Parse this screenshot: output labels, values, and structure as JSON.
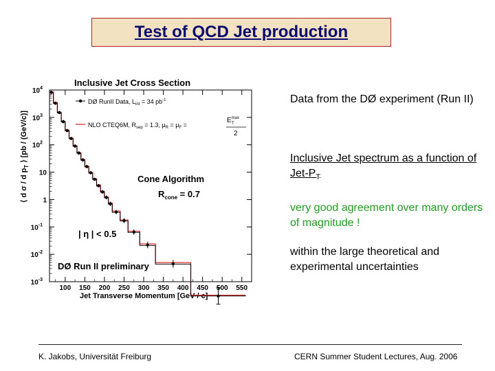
{
  "slide": {
    "title": "Test of QCD Jet production",
    "bullets": [
      {
        "text": "Data from the DØ experiment (Run II)",
        "color": "#000000",
        "underline": false
      },
      {
        "text": "Inclusive Jet spectrum as a function of Jet-P",
        "sub": "T",
        "color": "#000000",
        "underline": true
      },
      {
        "text": "very good agreement over many orders of magnitude !",
        "color": "#1e9a1e",
        "underline": false
      },
      {
        "text": "within the large theoretical and experimental uncertainties",
        "color": "#000000",
        "underline": false
      }
    ],
    "footer_left": "K. Jakobs, Universität Freiburg",
    "footer_right": "CERN Summer Student Lectures, Aug. 2006"
  },
  "chart_data": {
    "type": "scatter",
    "title": "Inclusive Jet Cross Section",
    "xlabel": "Jet Transverse Momentum [GeV / c]",
    "ylabel_parts": [
      "⟨ d σ / d p",
      "T",
      " ⟩ [pb / (GeV/c)]"
    ],
    "xlim": [
      60,
      575
    ],
    "ylim_log10": [
      -3,
      4
    ],
    "x_ticks": [
      100,
      150,
      200,
      250,
      300,
      350,
      400,
      450,
      500,
      550
    ],
    "y_ticks": [
      {
        "exp": 4,
        "label": "10",
        "sup": "4"
      },
      {
        "exp": 3,
        "label": "10",
        "sup": "3"
      },
      {
        "exp": 2,
        "label": "10",
        "sup": "2"
      },
      {
        "exp": 1,
        "label": "10",
        "sup": ""
      },
      {
        "exp": 0,
        "label": "1",
        "sup": ""
      },
      {
        "exp": -1,
        "label": "10",
        "sup": "-1"
      },
      {
        "exp": -2,
        "label": "10",
        "sup": "-2"
      },
      {
        "exp": -3,
        "label": "10",
        "sup": "-3"
      }
    ],
    "legend": [
      {
        "label": "DØ RunII Data, L",
        "sub": "int",
        "tail": " = 34 pb",
        "sup": "-1",
        "style": "data"
      },
      {
        "label": "NLO CTEQ6M, R",
        "sub": "sep",
        "tail": " = 1.3, μ",
        "tail2": " = μ",
        "tail3": " =",
        "style": "theory"
      }
    ],
    "legend_frac": {
      "num": "E",
      "num_sup": "max",
      "num_sub": "T",
      "den": "2"
    },
    "annotations": {
      "cone": "Cone Algorithm",
      "rcone_pre": "R",
      "rcone_sub": "cone",
      "rcone_post": " = 0.7",
      "eta_cut": "| η | < 0.5",
      "prelim": "DØ Run II preliminary"
    },
    "series": [
      {
        "name": "DØ RunII Data, L int = 34 pb-1",
        "color": "#000000",
        "points": [
          {
            "x": 65,
            "y": 8200,
            "err": 0.06
          },
          {
            "x": 75,
            "y": 3300,
            "err": 0.06
          },
          {
            "x": 85,
            "y": 1500,
            "err": 0.06
          },
          {
            "x": 95,
            "y": 700,
            "err": 0.06
          },
          {
            "x": 105,
            "y": 330,
            "err": 0.06
          },
          {
            "x": 115,
            "y": 170,
            "err": 0.06
          },
          {
            "x": 125,
            "y": 90,
            "err": 0.06
          },
          {
            "x": 135,
            "y": 50,
            "err": 0.06
          },
          {
            "x": 145,
            "y": 28,
            "err": 0.06
          },
          {
            "x": 155,
            "y": 16,
            "err": 0.06
          },
          {
            "x": 165,
            "y": 9.5,
            "err": 0.06
          },
          {
            "x": 175,
            "y": 5.5,
            "err": 0.06
          },
          {
            "x": 185,
            "y": 3.2,
            "err": 0.06
          },
          {
            "x": 195,
            "y": 1.9,
            "err": 0.07
          },
          {
            "x": 205,
            "y": 1.2,
            "err": 0.07
          },
          {
            "x": 215,
            "y": 0.7,
            "err": 0.08
          },
          {
            "x": 230,
            "y": 0.35,
            "err": 0.08
          },
          {
            "x": 250,
            "y": 0.17,
            "err": 0.09
          },
          {
            "x": 275,
            "y": 0.065,
            "err": 0.1
          },
          {
            "x": 310,
            "y": 0.022,
            "err": 0.12
          },
          {
            "x": 375,
            "y": 0.0045,
            "err": 0.14
          },
          {
            "x": 490,
            "y": 0.0003,
            "err": 0.3
          }
        ]
      },
      {
        "name": "NLO CTEQ6M",
        "color": "#e03030",
        "bins": [
          {
            "x0": 60,
            "x1": 70,
            "y": 8500
          },
          {
            "x0": 70,
            "x1": 80,
            "y": 3500
          },
          {
            "x0": 80,
            "x1": 90,
            "y": 1550
          },
          {
            "x0": 90,
            "x1": 100,
            "y": 720
          },
          {
            "x0": 100,
            "x1": 110,
            "y": 345
          },
          {
            "x0": 110,
            "x1": 120,
            "y": 175
          },
          {
            "x0": 120,
            "x1": 130,
            "y": 93
          },
          {
            "x0": 130,
            "x1": 140,
            "y": 51
          },
          {
            "x0": 140,
            "x1": 150,
            "y": 29
          },
          {
            "x0": 150,
            "x1": 160,
            "y": 16.5
          },
          {
            "x0": 160,
            "x1": 170,
            "y": 9.8
          },
          {
            "x0": 170,
            "x1": 180,
            "y": 5.8
          },
          {
            "x0": 180,
            "x1": 190,
            "y": 3.4
          },
          {
            "x0": 190,
            "x1": 200,
            "y": 2.0
          },
          {
            "x0": 200,
            "x1": 210,
            "y": 1.25
          },
          {
            "x0": 210,
            "x1": 220,
            "y": 0.75
          },
          {
            "x0": 220,
            "x1": 240,
            "y": 0.38
          },
          {
            "x0": 240,
            "x1": 260,
            "y": 0.18
          },
          {
            "x0": 260,
            "x1": 290,
            "y": 0.07
          },
          {
            "x0": 290,
            "x1": 330,
            "y": 0.024
          },
          {
            "x0": 330,
            "x1": 420,
            "y": 0.005
          },
          {
            "x0": 420,
            "x1": 560,
            "y": 0.00032
          }
        ]
      }
    ],
    "step_black": [
      {
        "x0": 60,
        "x1": 70,
        "y": 8000
      },
      {
        "x0": 70,
        "x1": 80,
        "y": 3200
      },
      {
        "x0": 80,
        "x1": 90,
        "y": 1450
      },
      {
        "x0": 90,
        "x1": 100,
        "y": 690
      },
      {
        "x0": 100,
        "x1": 110,
        "y": 325
      },
      {
        "x0": 110,
        "x1": 120,
        "y": 168
      },
      {
        "x0": 120,
        "x1": 130,
        "y": 88
      },
      {
        "x0": 130,
        "x1": 140,
        "y": 49
      },
      {
        "x0": 140,
        "x1": 150,
        "y": 27.5
      },
      {
        "x0": 150,
        "x1": 160,
        "y": 15.5
      },
      {
        "x0": 160,
        "x1": 170,
        "y": 9.2
      },
      {
        "x0": 170,
        "x1": 180,
        "y": 5.4
      },
      {
        "x0": 180,
        "x1": 190,
        "y": 3.1
      },
      {
        "x0": 190,
        "x1": 200,
        "y": 1.85
      },
      {
        "x0": 200,
        "x1": 210,
        "y": 1.15
      },
      {
        "x0": 210,
        "x1": 220,
        "y": 0.68
      },
      {
        "x0": 220,
        "x1": 240,
        "y": 0.34
      },
      {
        "x0": 240,
        "x1": 260,
        "y": 0.165
      },
      {
        "x0": 260,
        "x1": 290,
        "y": 0.063
      },
      {
        "x0": 290,
        "x1": 330,
        "y": 0.021
      },
      {
        "x0": 330,
        "x1": 420,
        "y": 0.0044
      },
      {
        "x0": 420,
        "x1": 560,
        "y": 0.0003
      }
    ],
    "grid": false,
    "legend_position": "top-right"
  }
}
